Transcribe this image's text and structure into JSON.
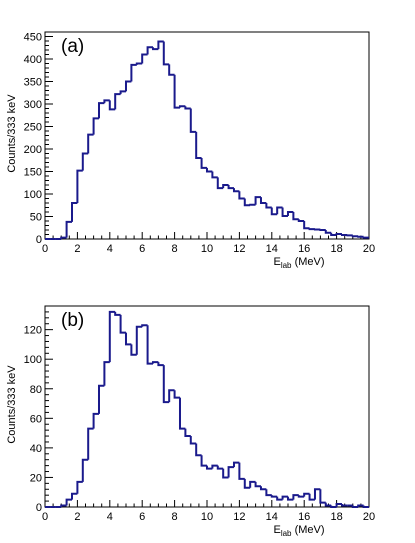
{
  "colors": {
    "line": "#1a1a8c",
    "axis": "#000000",
    "background": "#ffffff"
  },
  "chart_data": [
    {
      "type": "histogram",
      "panel_label": "(a)",
      "xlabel_main": "E",
      "xlabel_sub": "lab",
      "xlabel_unit": " (MeV)",
      "ylabel": "Counts/333 keV",
      "xlim": [
        0,
        20
      ],
      "ylim": [
        0,
        460
      ],
      "xticks": [
        0,
        2,
        4,
        6,
        8,
        10,
        12,
        14,
        16,
        18,
        20
      ],
      "yticks": [
        0,
        50,
        100,
        150,
        200,
        250,
        300,
        350,
        400,
        450
      ],
      "bin_width": 0.3333,
      "grid": false,
      "values": [
        0,
        0,
        0,
        3,
        38,
        80,
        152,
        190,
        232,
        268,
        302,
        308,
        288,
        322,
        328,
        350,
        387,
        390,
        410,
        426,
        422,
        439,
        388,
        365,
        292,
        295,
        290,
        238,
        180,
        158,
        150,
        137,
        113,
        120,
        113,
        106,
        90,
        75,
        76,
        93,
        80,
        70,
        55,
        70,
        51,
        60,
        44,
        40,
        24,
        22,
        21,
        20,
        14,
        9,
        11,
        9,
        8,
        6,
        5,
        3
      ]
    },
    {
      "type": "histogram",
      "panel_label": "(b)",
      "xlabel_main": "E",
      "xlabel_sub": "lab",
      "xlabel_unit": " (MeV)",
      "ylabel": "Counts/333 keV",
      "xlim": [
        0,
        20
      ],
      "ylim": [
        0,
        136
      ],
      "xticks": [
        0,
        2,
        4,
        6,
        8,
        10,
        12,
        14,
        16,
        18,
        20
      ],
      "yticks": [
        0,
        20,
        40,
        60,
        80,
        100,
        120
      ],
      "bin_width": 0.3333,
      "grid": false,
      "values": [
        0,
        0,
        0,
        1,
        5,
        9,
        17,
        32,
        53,
        63,
        82,
        98,
        132,
        130,
        118,
        110,
        103,
        122,
        123,
        97,
        98,
        96,
        71,
        79,
        74,
        53,
        48,
        43,
        35,
        28,
        26,
        28,
        26,
        20,
        27,
        30,
        19,
        13,
        17,
        14,
        12,
        8,
        7,
        5,
        7,
        5,
        8,
        7,
        9,
        5,
        12,
        3,
        1,
        0,
        2,
        1,
        1,
        0,
        1,
        0
      ]
    }
  ]
}
